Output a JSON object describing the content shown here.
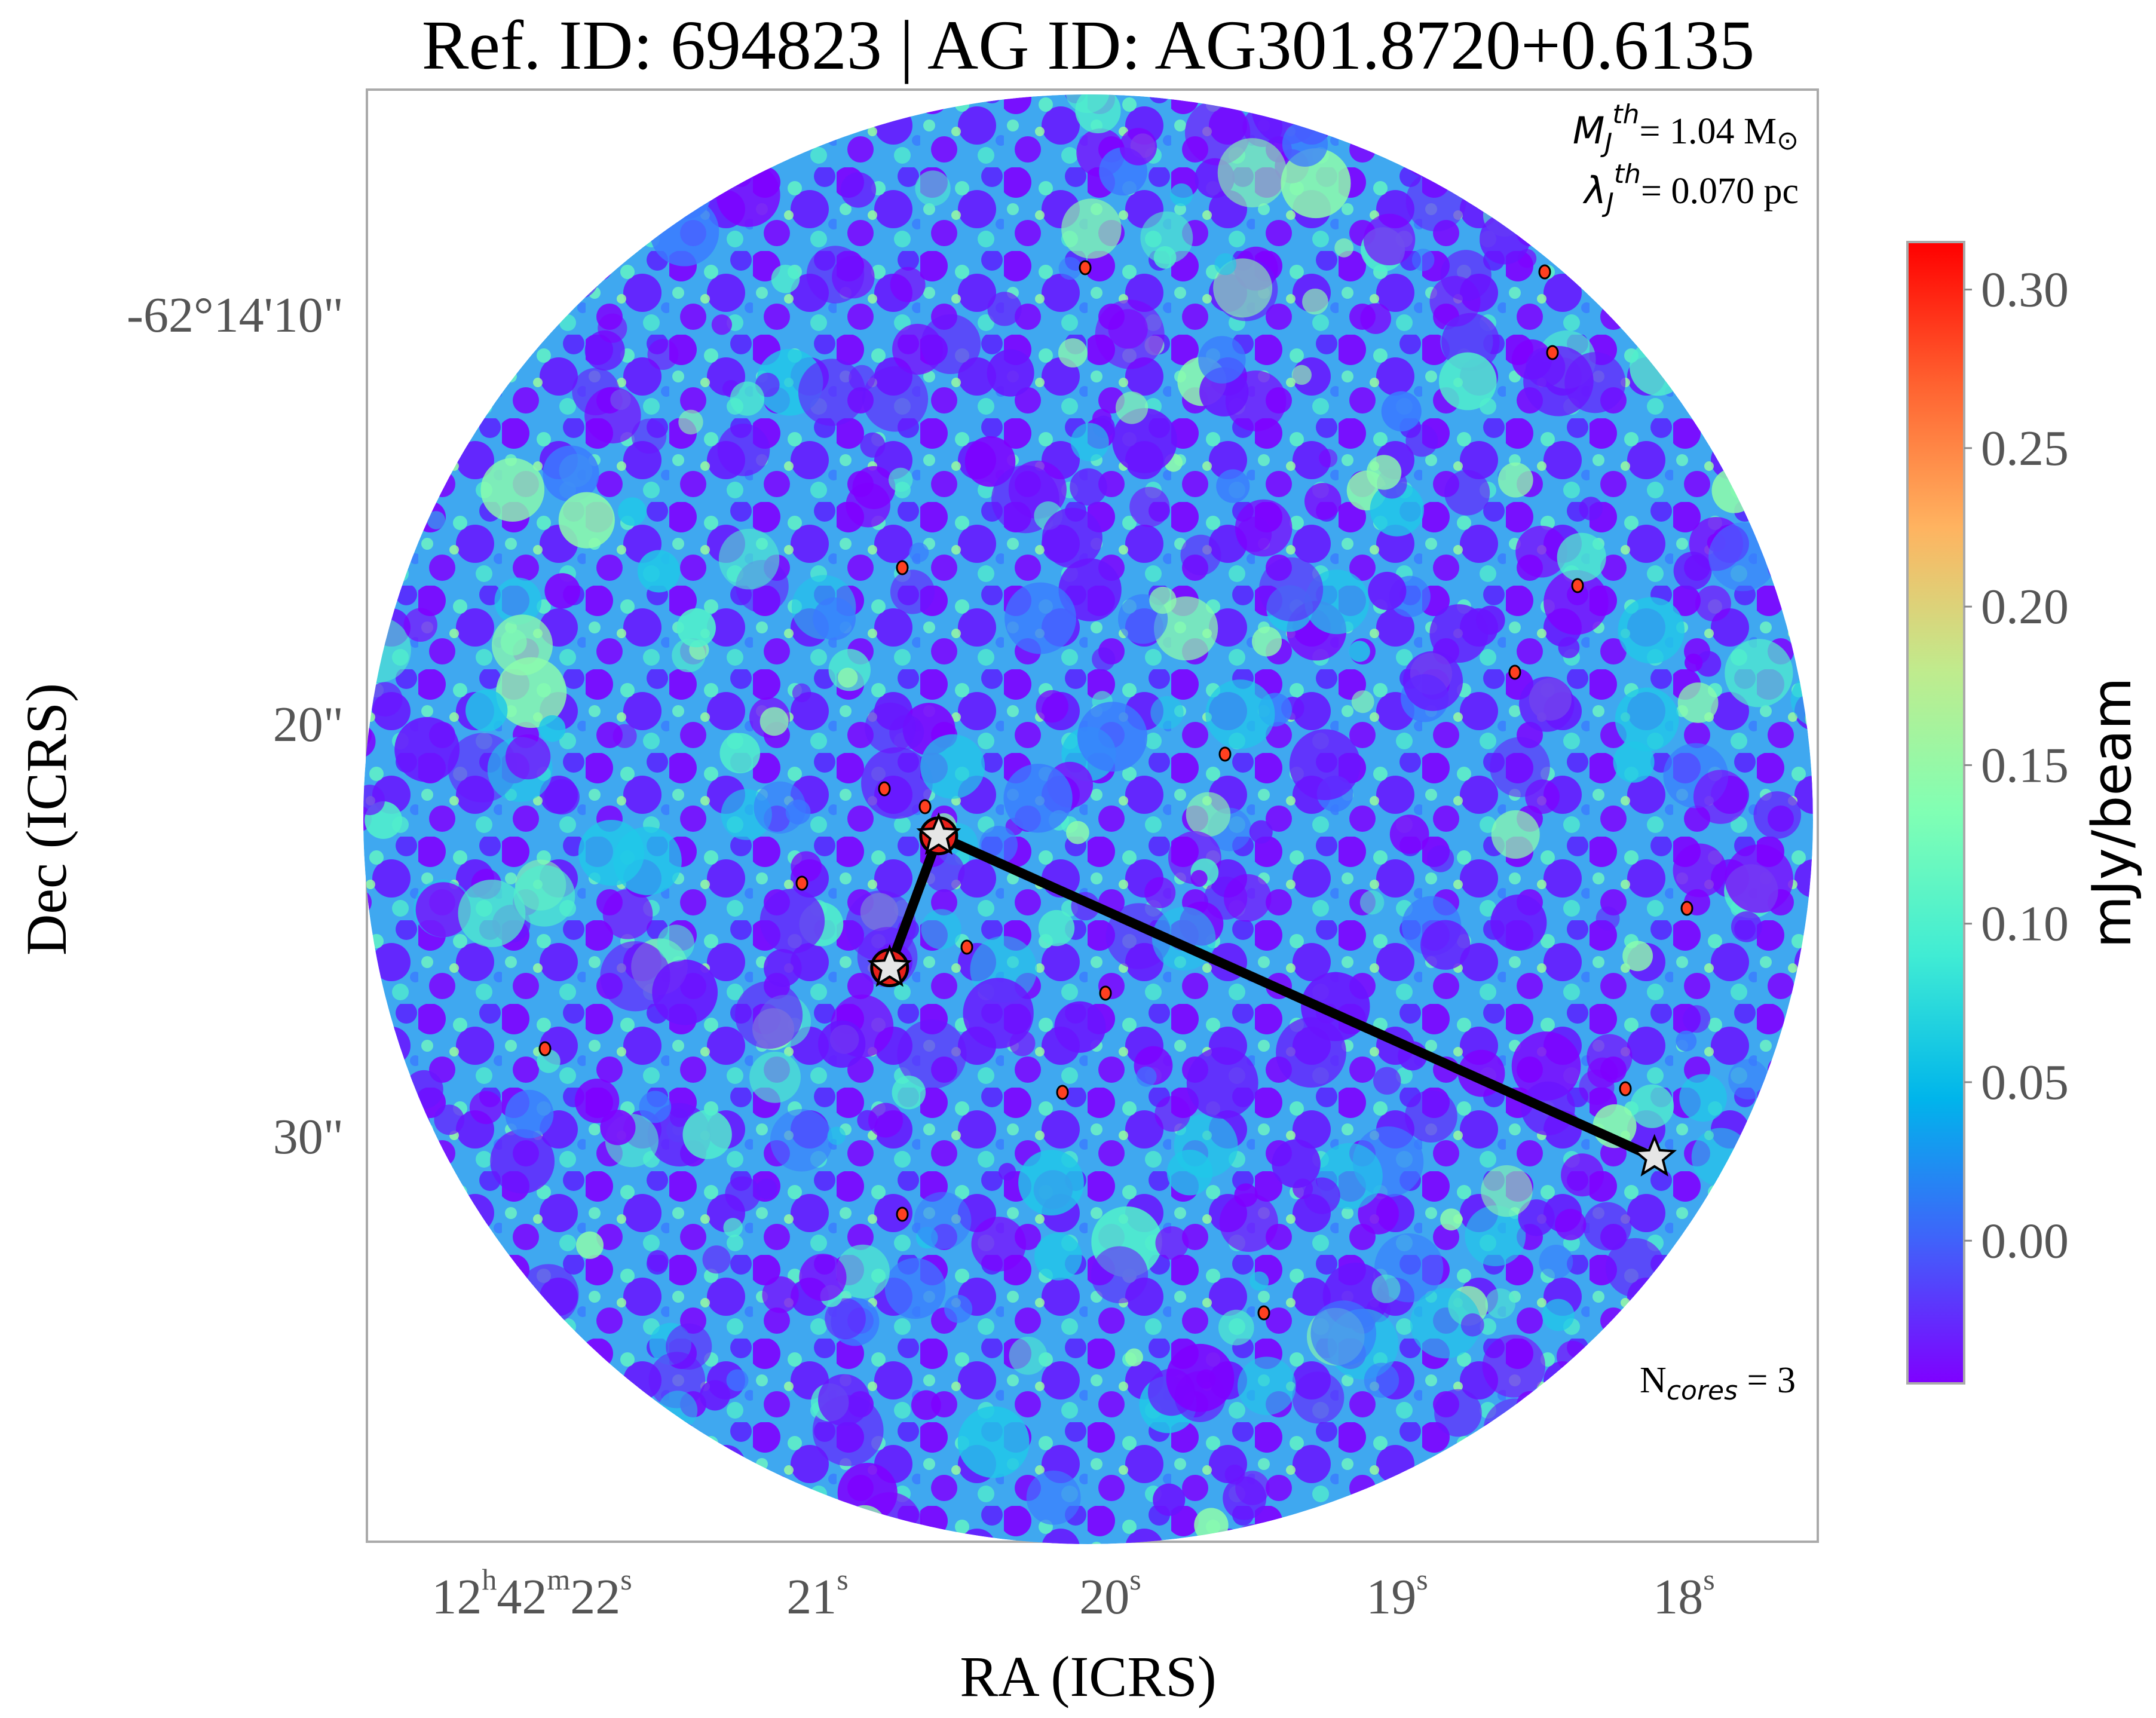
{
  "chart_data": {
    "type": "heatmap",
    "title": "Ref. ID: 694823 | AG ID: AG301.8720+0.6135",
    "xlabel": "RA (ICRS)",
    "ylabel": "Dec (ICRS)",
    "x_ticks": [
      {
        "main": "12",
        "sup1": "h",
        "mid": "42",
        "sup2": "m",
        "tail": "22",
        "sup3": "s"
      },
      {
        "main": "21",
        "sup3": "s"
      },
      {
        "main": "20",
        "sup3": "s"
      },
      {
        "main": "19",
        "sup3": "s"
      },
      {
        "main": "18",
        "sup3": "s"
      }
    ],
    "y_ticks": [
      "-62°14'10\"",
      "20\"",
      "30\""
    ],
    "colorbar": {
      "label": "mJy/beam",
      "ticks": [
        "0.30",
        "0.25",
        "0.20",
        "0.15",
        "0.10",
        "0.05",
        "0.00"
      ],
      "colormap": "rainbow",
      "colors": [
        "#7f00ff",
        "#4062fa",
        "#00b5eb",
        "#40ecd4",
        "#80ffb4",
        "#c0eb8d",
        "#ffb360",
        "#ff6230",
        "#ff0000"
      ]
    },
    "annotations": {
      "mass_symbol": "M",
      "mass_sub": "J",
      "mass_sup": "th",
      "mass_value": "= 1.04 M",
      "mass_unit_symbol": "⊙",
      "length_symbol": "λ",
      "length_sub": "J",
      "length_sup": "th",
      "length_value": "= 0.070 pc",
      "ncores_prefix": "N",
      "ncores_sub": "cores",
      "ncores_value": " = 3"
    },
    "cores": [
      {
        "id": 1,
        "ra": "12h42m20.58s",
        "dec": "-62°14'22.3\""
      },
      {
        "id": 2,
        "ra": "12h42m20.75s",
        "dec": "-62°14'25.5\""
      },
      {
        "id": 3,
        "ra": "12h42m18.10s",
        "dec": "-62°14'30.1\""
      }
    ],
    "mst_edges": [
      [
        1,
        2
      ],
      [
        1,
        3
      ]
    ]
  }
}
